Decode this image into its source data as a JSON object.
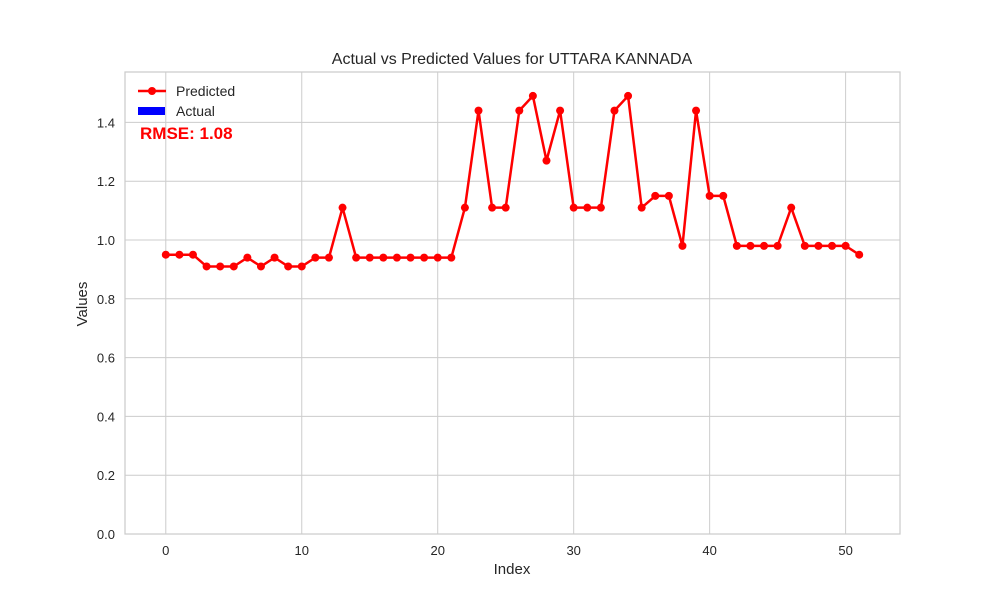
{
  "chart_data": {
    "type": "line",
    "title": "Actual vs Predicted Values for UTTARA KANNADA",
    "xlabel": "Index",
    "ylabel": "Values",
    "xlim": [
      -3,
      54
    ],
    "ylim": [
      0,
      1.5714
    ],
    "xticks": [
      0,
      10,
      20,
      30,
      40,
      50
    ],
    "yticks": [
      0.0,
      0.2,
      0.4,
      0.6,
      0.8,
      1.0,
      1.2,
      1.4
    ],
    "ytick_labels": [
      "0.0",
      "0.2",
      "0.4",
      "0.6",
      "0.8",
      "1.0",
      "1.2",
      "1.4"
    ],
    "xtick_labels": [
      "0",
      "10",
      "20",
      "30",
      "40",
      "50"
    ],
    "grid": true,
    "legend_position": "top-left",
    "series": [
      {
        "name": "Predicted",
        "style": "line-with-markers",
        "color": "#ff0000",
        "x": [
          0,
          1,
          2,
          3,
          4,
          5,
          6,
          7,
          8,
          9,
          10,
          11,
          12,
          13,
          14,
          15,
          16,
          17,
          18,
          19,
          20,
          21,
          22,
          23,
          24,
          25,
          26,
          27,
          28,
          29,
          30,
          31,
          32,
          33,
          34,
          35,
          36,
          37,
          38,
          39,
          40,
          41,
          42,
          43,
          44,
          45,
          46,
          47,
          48,
          49,
          50,
          51
        ],
        "values": [
          0.95,
          0.95,
          0.95,
          0.91,
          0.91,
          0.91,
          0.94,
          0.91,
          0.94,
          0.91,
          0.91,
          0.94,
          0.94,
          1.11,
          0.94,
          0.94,
          0.94,
          0.94,
          0.94,
          0.94,
          0.94,
          0.94,
          1.11,
          1.44,
          1.11,
          1.11,
          1.44,
          1.49,
          1.27,
          1.44,
          1.11,
          1.11,
          1.11,
          1.44,
          1.49,
          1.11,
          1.15,
          1.15,
          0.98,
          1.44,
          1.15,
          1.15,
          0.98,
          0.98,
          0.98,
          0.98,
          1.11,
          0.98,
          0.98,
          0.98,
          0.98,
          0.95
        ]
      },
      {
        "name": "Actual",
        "style": "bar",
        "color": "#0000ff",
        "values": []
      }
    ],
    "annotation": {
      "text": "RMSE: 1.08",
      "color": "#ff0000"
    }
  }
}
